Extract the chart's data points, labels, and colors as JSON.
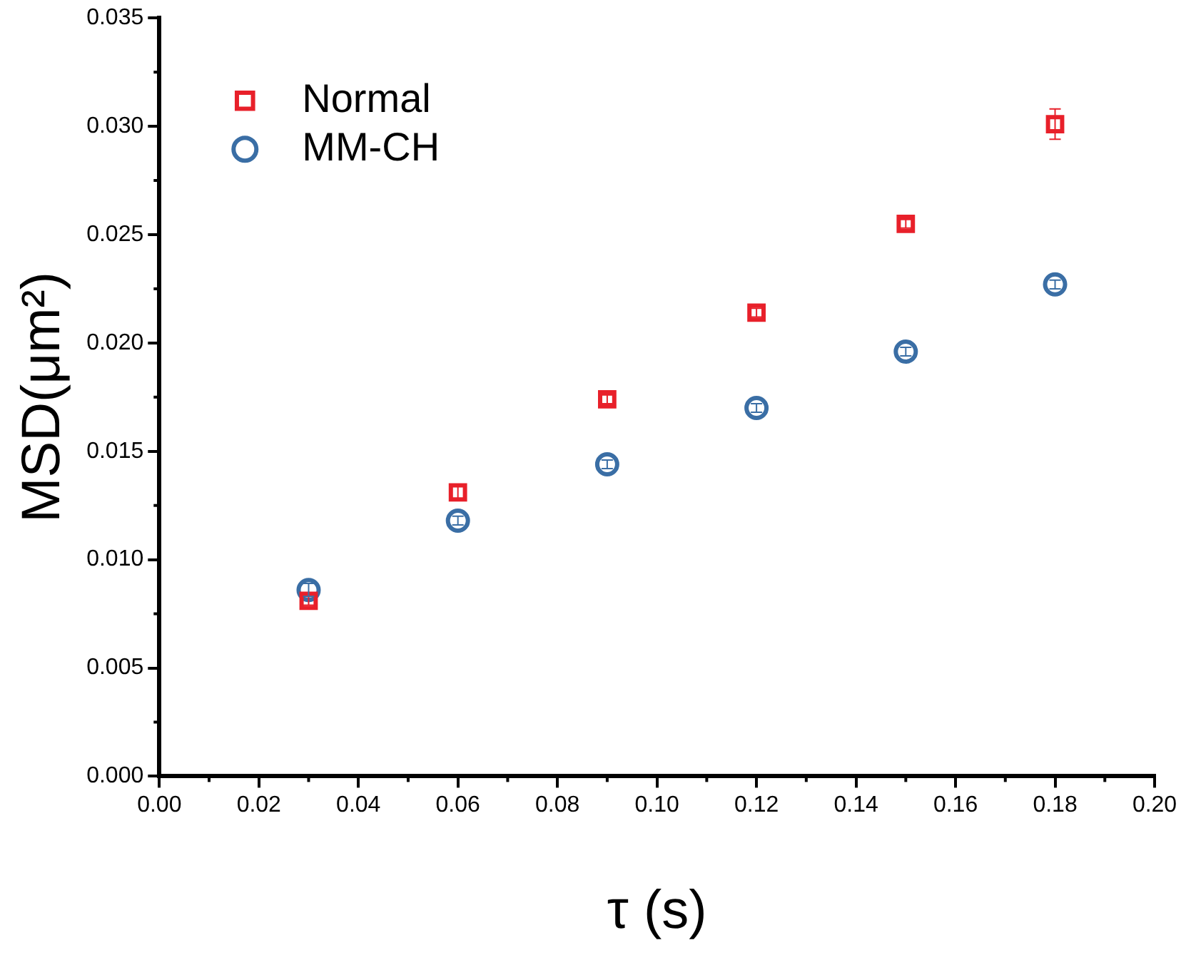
{
  "chart_data": {
    "type": "scatter",
    "xlabel": "τ (s)",
    "ylabel": "MSD(μm²)",
    "x": [
      0.03,
      0.06,
      0.09,
      0.12,
      0.15,
      0.18
    ],
    "series": [
      {
        "name": "Normal",
        "color": "#e8202a",
        "marker": "square",
        "values": [
          0.0081,
          0.0131,
          0.0174,
          0.0214,
          0.0255,
          0.0301
        ],
        "errors": [
          0.0002,
          0.0003,
          0.0002,
          0.0002,
          0.0002,
          0.0007
        ]
      },
      {
        "name": "MM-CH",
        "color": "#3a6ea5",
        "marker": "circle",
        "values": [
          0.0086,
          0.0118,
          0.0144,
          0.017,
          0.0196,
          0.0227
        ],
        "errors": [
          0.0003,
          0.0002,
          0.0002,
          0.0002,
          0.0002,
          0.0002
        ]
      }
    ],
    "xlim": [
      0,
      0.2
    ],
    "xticks": [
      {
        "value": 0,
        "label": "0.00"
      },
      {
        "value": 0.02,
        "label": "0.02"
      },
      {
        "value": 0.04,
        "label": "0.04"
      },
      {
        "value": 0.06,
        "label": "0.06"
      },
      {
        "value": 0.08,
        "label": "0.08"
      },
      {
        "value": 0.1,
        "label": "0.10"
      },
      {
        "value": 0.12,
        "label": "0.12"
      },
      {
        "value": 0.14,
        "label": "0.14"
      },
      {
        "value": 0.16,
        "label": "0.16"
      },
      {
        "value": 0.18,
        "label": "0.18"
      },
      {
        "value": 0.2,
        "label": "0.20"
      }
    ],
    "ylim": [
      0,
      0.035
    ],
    "yticks": [
      {
        "value": 0,
        "label": "0.000"
      },
      {
        "value": 0.005,
        "label": "0.005"
      },
      {
        "value": 0.01,
        "label": "0.010"
      },
      {
        "value": 0.015,
        "label": "0.015"
      },
      {
        "value": 0.02,
        "label": "0.020"
      },
      {
        "value": 0.025,
        "label": "0.025"
      },
      {
        "value": 0.03,
        "label": "0.030"
      },
      {
        "value": 0.035,
        "label": "0.035"
      }
    ],
    "grid": false,
    "legend": "top left"
  }
}
